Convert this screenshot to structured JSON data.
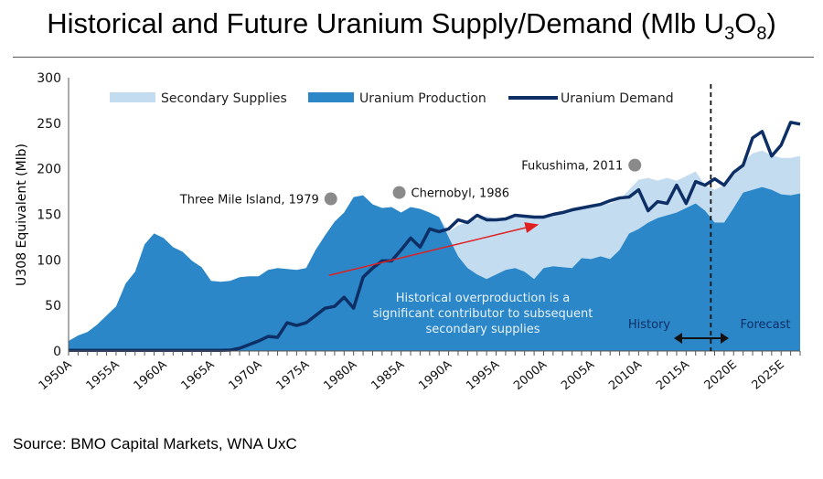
{
  "title": "Historical and Future Uranium Supply/Demand (Mlb U",
  "title_sub3": "3",
  "title_o": "O",
  "title_sub8": "8",
  "title_close": ")",
  "source": "Source: BMO Capital Markets, WNA UxC",
  "chart_data": {
    "type": "area",
    "ylabel": "U308 Equivalent (Mlb)",
    "ylim": [
      0,
      300
    ],
    "yticks": [
      "0",
      "50",
      "100",
      "150",
      "200",
      "250",
      "300"
    ],
    "xlim": [
      1950,
      2027
    ],
    "xtick_labels": [
      "1950A",
      "1955A",
      "1960A",
      "1965A",
      "1970A",
      "1975A",
      "1980A",
      "1985A",
      "1990A",
      "1995A",
      "2000A",
      "2005A",
      "2010A",
      "2015A",
      "2020E",
      "2025E"
    ],
    "legend_position": "top",
    "grid": false,
    "colors": {
      "secondary": "#c4dcf0",
      "production": "#2b87c8",
      "demand": "#0d2f66",
      "arrow": "#e02020",
      "marker": "#8a8a8a"
    },
    "x": [
      1950,
      1951,
      1952,
      1953,
      1954,
      1955,
      1956,
      1957,
      1958,
      1959,
      1960,
      1961,
      1962,
      1963,
      1964,
      1965,
      1966,
      1967,
      1968,
      1969,
      1970,
      1971,
      1972,
      1973,
      1974,
      1975,
      1976,
      1977,
      1978,
      1979,
      1980,
      1981,
      1982,
      1983,
      1984,
      1985,
      1986,
      1987,
      1988,
      1989,
      1990,
      1991,
      1992,
      1993,
      1994,
      1995,
      1996,
      1997,
      1998,
      1999,
      2000,
      2001,
      2002,
      2003,
      2004,
      2005,
      2006,
      2007,
      2008,
      2009,
      2010,
      2011,
      2012,
      2013,
      2014,
      2015,
      2016,
      2017,
      2018,
      2019,
      2020,
      2021,
      2022,
      2023,
      2024,
      2025,
      2026,
      2027
    ],
    "series": [
      {
        "name": "Uranium Production",
        "kind": "area",
        "values": [
          11,
          17,
          21,
          29,
          39,
          49,
          74,
          87,
          117,
          129,
          124,
          114,
          109,
          99,
          92,
          77,
          76,
          77,
          81,
          82,
          82,
          89,
          91,
          90,
          89,
          91,
          111,
          127,
          142,
          152,
          169,
          171,
          161,
          157,
          158,
          152,
          158,
          156,
          152,
          147,
          125,
          104,
          91,
          84,
          79,
          84,
          89,
          91,
          87,
          79,
          91,
          93,
          92,
          91,
          102,
          101,
          104,
          101,
          111,
          129,
          134,
          141,
          146,
          149,
          152,
          157,
          162,
          154,
          141,
          141,
          157,
          174,
          177,
          180,
          177,
          172,
          171,
          173
        ]
      },
      {
        "name": "Secondary Supplies",
        "kind": "stacked-area",
        "values": [
          0,
          0,
          0,
          0,
          0,
          0,
          0,
          0,
          0,
          0,
          0,
          0,
          0,
          0,
          0,
          0,
          0,
          0,
          0,
          0,
          0,
          0,
          0,
          0,
          0,
          0,
          0,
          0,
          0,
          0,
          0,
          0,
          0,
          0,
          0,
          0,
          0,
          0,
          0,
          0,
          6,
          34,
          51,
          61,
          69,
          61,
          57,
          56,
          62,
          69,
          57,
          57,
          60,
          63,
          54,
          57,
          56,
          61,
          55,
          48,
          54,
          49,
          41,
          41,
          35,
          35,
          35,
          28,
          36,
          41,
          35,
          34,
          40,
          40,
          38,
          40,
          41,
          41
        ]
      },
      {
        "name": "Uranium Demand",
        "kind": "line",
        "values": [
          0,
          0,
          0,
          0,
          0,
          0,
          0,
          0,
          0,
          0,
          0,
          0,
          0,
          0,
          0,
          0,
          0,
          1,
          3,
          7,
          11,
          16,
          15,
          31,
          28,
          31,
          39,
          47,
          49,
          59,
          47,
          81,
          91,
          99,
          99,
          111,
          124,
          114,
          134,
          131,
          134,
          144,
          141,
          149,
          144,
          144,
          145,
          149,
          148,
          147,
          147,
          150,
          152,
          155,
          157,
          159,
          161,
          165,
          168,
          169,
          177,
          154,
          164,
          162,
          182,
          162,
          186,
          182,
          189,
          182,
          196,
          204,
          234,
          241,
          214,
          226,
          251,
          249
        ]
      }
    ],
    "annotations": [
      {
        "label": "Three Mile Island, 1979",
        "x": 1977.6,
        "y": 167
      },
      {
        "label": "Chernobyl, 1986",
        "x": 1984.8,
        "y": 174
      },
      {
        "label": "Fukushima, 2011",
        "x": 2009.6,
        "y": 204
      }
    ],
    "arrow": {
      "from": [
        1977.4,
        83
      ],
      "to": [
        1999.5,
        139
      ]
    },
    "note": [
      "Historical overproduction is a",
      "significant contributor to subsequent",
      "secondary supplies"
    ],
    "divider_year": 2017.6,
    "history_label": "History",
    "forecast_label": "Forecast"
  }
}
